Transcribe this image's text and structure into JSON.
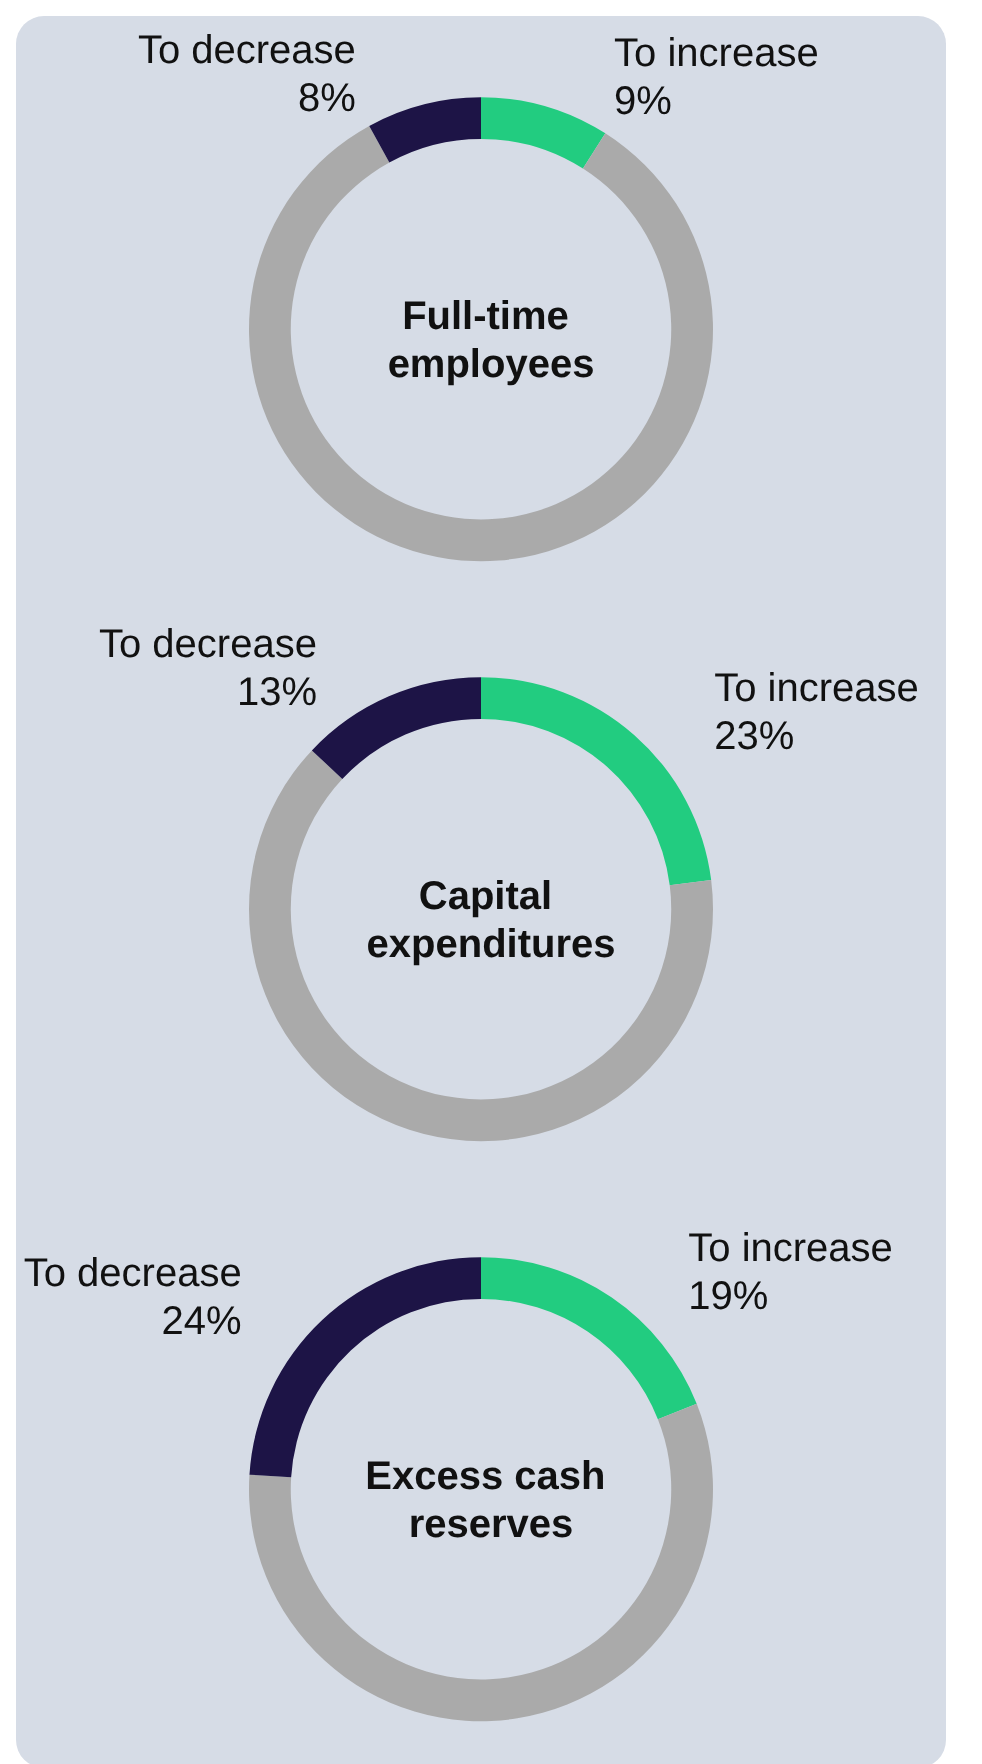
{
  "chart_data": [
    {
      "type": "donut",
      "title": "Full-time employees",
      "categories": [
        "To increase",
        null,
        "To decrease"
      ],
      "values": [
        9,
        83,
        8
      ],
      "colors": [
        "#22cc80",
        "#aaaaaa",
        "#1d1446"
      ],
      "value_labels": [
        "9%",
        null,
        "8%"
      ]
    },
    {
      "type": "donut",
      "title": "Capital expenditures",
      "categories": [
        "To increase",
        null,
        "To decrease"
      ],
      "values": [
        23,
        64,
        13
      ],
      "colors": [
        "#22cc80",
        "#aaaaaa",
        "#1d1446"
      ],
      "value_labels": [
        "23%",
        null,
        "13%"
      ]
    },
    {
      "type": "donut",
      "title": "Excess cash reserves",
      "categories": [
        "To increase",
        null,
        "To decrease"
      ],
      "values": [
        19,
        57,
        24
      ],
      "colors": [
        "#22cc80",
        "#aaaaaa",
        "#1d1446"
      ],
      "value_labels": [
        "19%",
        null,
        "24%"
      ]
    }
  ]
}
